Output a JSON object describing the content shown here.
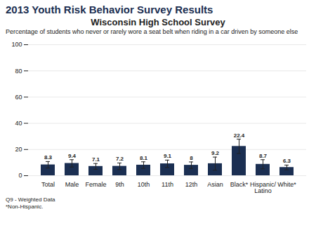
{
  "chart_data": {
    "type": "bar",
    "header": "2013 Youth Risk Behavior Survey Results",
    "title": "Wisconsin High School Survey",
    "subtitle": "Percentage of students who never or rarely wore a seat belt when riding in a car driven by someone else",
    "footnotes": [
      "Q9 - Weighted Data",
      "*Non-Hispanic."
    ],
    "categories": [
      "Total",
      "Male",
      "Female",
      "9th",
      "10th",
      "11th",
      "12th",
      "Asian",
      "Black*",
      "Hispanic/\nLatino",
      "White*"
    ],
    "values": [
      8.3,
      9.4,
      7.1,
      7.2,
      8.1,
      9.1,
      8.0,
      9.2,
      22.4,
      8.7,
      6.3
    ],
    "errors": [
      2.5,
      2.8,
      2.2,
      2.5,
      2.5,
      2.8,
      2.5,
      5.0,
      5.5,
      3.5,
      1.8
    ],
    "color": "#1b2f52",
    "ylim": [
      0,
      100
    ],
    "yticks": [
      0,
      20,
      40,
      60,
      80,
      100
    ],
    "grid": true,
    "data_labels": true
  }
}
